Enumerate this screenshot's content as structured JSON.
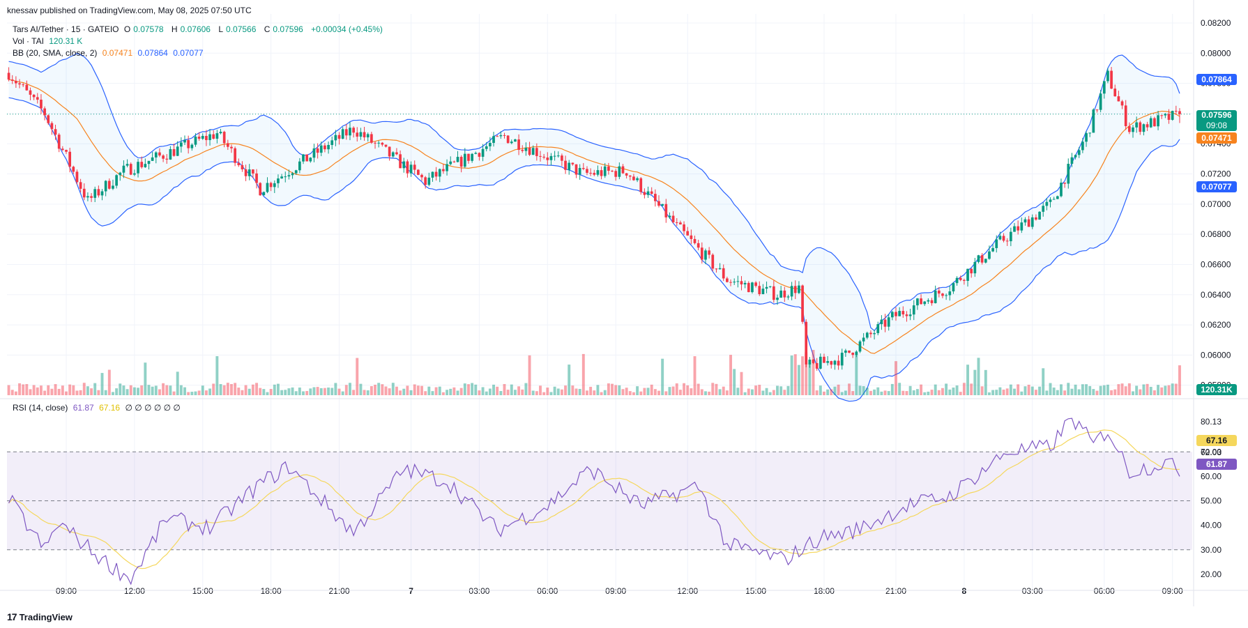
{
  "header": {
    "published": "knessav published on TradingView.com, May 08, 2025 07:50 UTC"
  },
  "legend": {
    "symbol": "Tars AI/Tether · 15 · GATEIO",
    "o_label": "O",
    "o": "0.07578",
    "h_label": "H",
    "h": "0.07606",
    "l_label": "L",
    "l": "0.07566",
    "c_label": "C",
    "c": "0.07596",
    "chg": "+0.00034 (+0.45%)",
    "vol_label": "Vol · TAI",
    "vol": "120.31 K",
    "bb_label": "BB (20, SMA, close, 2)",
    "bb_basis": "0.07471",
    "bb_upper": "0.07864",
    "bb_lower": "0.07077",
    "rsi_label": "RSI (14, close)",
    "rsi": "61.87",
    "rsi_ma": "67.16",
    "rsi_na": "∅ ∅ ∅ ∅ ∅ ∅"
  },
  "price_tags": {
    "upper": "0.07864",
    "last": "0.07596",
    "countdown": "09:08",
    "basis": "0.07471",
    "lower": "0.07077",
    "volume": "120.31K",
    "rsi_ma": "67.16",
    "rsi": "61.87",
    "rsi_hi": "80.13",
    "rsi_mid": "62.03"
  },
  "brand": {
    "logo_mark": "17",
    "logo_text": "TradingView"
  },
  "colors": {
    "up": "#089981",
    "down": "#f23645",
    "basis": "#f7831e",
    "band": "#2962ff",
    "rsi": "#7e57c2",
    "rsi_ma": "#f5d75c"
  },
  "chart_data": {
    "type": "candlestick",
    "panes": [
      "price",
      "volume",
      "rsi"
    ],
    "x_ticks": [
      "09:00",
      "12:00",
      "15:00",
      "18:00",
      "21:00",
      "7",
      "03:00",
      "06:00",
      "09:00",
      "12:00",
      "15:00",
      "18:00",
      "21:00",
      "8",
      "03:00",
      "06:00",
      "09:00"
    ],
    "price_ticks": [
      "0.08200",
      "0.08000",
      "0.07800",
      "0.07600",
      "0.07400",
      "0.07200",
      "0.07000",
      "0.06800",
      "0.06600",
      "0.06400",
      "0.06200",
      "0.06000",
      "0.05800"
    ],
    "price_range": [
      0.0572,
      0.0826
    ],
    "rsi_ticks": [
      "80.13",
      "70.00",
      "60.00",
      "50.00",
      "40.00",
      "30.00",
      "20.00"
    ],
    "rsi_range": [
      14,
      90
    ],
    "rsi_band": [
      30,
      70
    ],
    "last_price": 0.07596,
    "price_keypoints": [
      {
        "x": 0,
        "close": 0.0787
      },
      {
        "x": 10,
        "close": 0.076
      },
      {
        "x": 22,
        "close": 0.0702
      },
      {
        "x": 32,
        "close": 0.0722
      },
      {
        "x": 58,
        "close": 0.0747
      },
      {
        "x": 70,
        "close": 0.071
      },
      {
        "x": 96,
        "close": 0.075
      },
      {
        "x": 116,
        "close": 0.0715
      },
      {
        "x": 138,
        "close": 0.0745
      },
      {
        "x": 160,
        "close": 0.072
      },
      {
        "x": 172,
        "close": 0.0722
      },
      {
        "x": 186,
        "close": 0.0685
      },
      {
        "x": 200,
        "close": 0.065
      },
      {
        "x": 214,
        "close": 0.064
      },
      {
        "x": 220,
        "close": 0.0645
      },
      {
        "x": 222,
        "close": 0.0592
      },
      {
        "x": 232,
        "close": 0.0598
      },
      {
        "x": 246,
        "close": 0.0625
      },
      {
        "x": 262,
        "close": 0.0645
      },
      {
        "x": 276,
        "close": 0.0675
      },
      {
        "x": 290,
        "close": 0.07
      },
      {
        "x": 300,
        "close": 0.0745
      },
      {
        "x": 306,
        "close": 0.0785
      },
      {
        "x": 312,
        "close": 0.075
      },
      {
        "x": 326,
        "close": 0.0759
      }
    ],
    "rsi_keypoints": [
      {
        "x": 0,
        "rsi": 51
      },
      {
        "x": 10,
        "rsi": 30
      },
      {
        "x": 14,
        "rsi": 41
      },
      {
        "x": 26,
        "rsi": 26
      },
      {
        "x": 34,
        "rsi": 18
      },
      {
        "x": 44,
        "rsi": 43
      },
      {
        "x": 56,
        "rsi": 39
      },
      {
        "x": 70,
        "rsi": 57
      },
      {
        "x": 78,
        "rsi": 64
      },
      {
        "x": 96,
        "rsi": 37
      },
      {
        "x": 110,
        "rsi": 63
      },
      {
        "x": 122,
        "rsi": 58
      },
      {
        "x": 136,
        "rsi": 38
      },
      {
        "x": 150,
        "rsi": 48
      },
      {
        "x": 162,
        "rsi": 63
      },
      {
        "x": 176,
        "rsi": 48
      },
      {
        "x": 192,
        "rsi": 56
      },
      {
        "x": 200,
        "rsi": 32
      },
      {
        "x": 216,
        "rsi": 26
      },
      {
        "x": 226,
        "rsi": 35
      },
      {
        "x": 236,
        "rsi": 38
      },
      {
        "x": 250,
        "rsi": 48
      },
      {
        "x": 262,
        "rsi": 52
      },
      {
        "x": 278,
        "rsi": 70
      },
      {
        "x": 290,
        "rsi": 72
      },
      {
        "x": 296,
        "rsi": 84
      },
      {
        "x": 302,
        "rsi": 73
      },
      {
        "x": 306,
        "rsi": 79
      },
      {
        "x": 312,
        "rsi": 62
      },
      {
        "x": 318,
        "rsi": 64
      },
      {
        "x": 322,
        "rsi": 66
      },
      {
        "x": 326,
        "rsi": 62
      }
    ]
  }
}
